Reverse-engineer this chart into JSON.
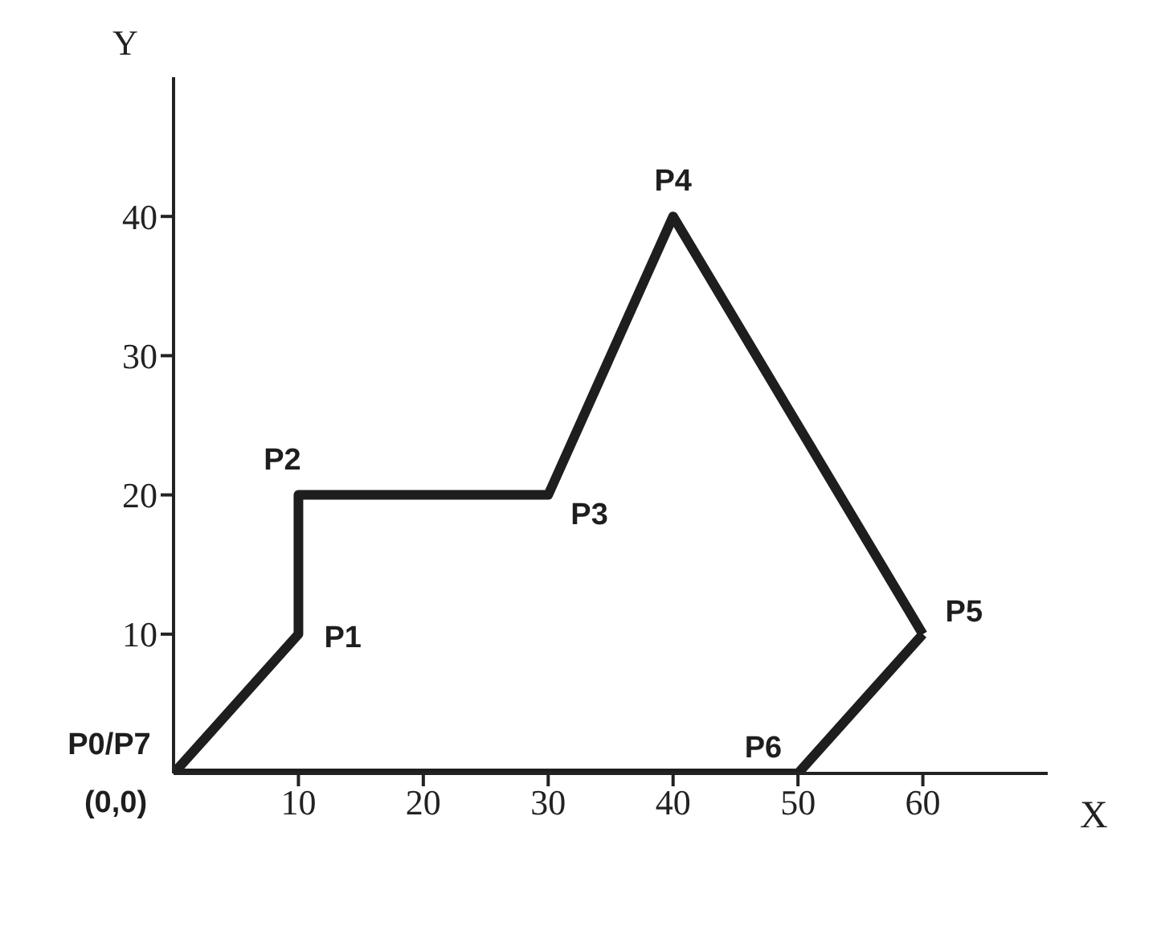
{
  "chart_data": {
    "type": "line",
    "xlabel": "X",
    "ylabel": "Y",
    "series": [
      {
        "color": "#1e1e1e",
        "x": [
          0,
          10,
          10,
          30,
          40,
          60
        ],
        "values": [
          0,
          10,
          20,
          20,
          40,
          10
        ]
      },
      {
        "color": "#1e1e1e",
        "x": [
          0,
          50,
          60
        ],
        "values": [
          0,
          0,
          10
        ]
      }
    ],
    "xlim": [
      0,
      70
    ],
    "ylim": [
      0,
      50
    ],
    "xticks": [
      10,
      20,
      30,
      40,
      50,
      60
    ],
    "yticks": [
      10,
      20,
      30,
      40
    ],
    "grid": false,
    "legend": false,
    "marker": "none",
    "line_style": "solid",
    "annotations": [
      {
        "text": "P0/P7",
        "x": 0,
        "y": 0
      },
      {
        "text": "P1",
        "x": 10,
        "y": 10
      },
      {
        "text": "P2",
        "x": 10,
        "y": 20
      },
      {
        "text": "P3",
        "x": 30,
        "y": 20
      },
      {
        "text": "P4",
        "x": 40,
        "y": 40
      },
      {
        "text": "P5",
        "x": 60,
        "y": 10
      },
      {
        "text": "P6",
        "x": 50,
        "y": 0
      },
      {
        "text": "(0,0)",
        "x": 0,
        "y": 0
      }
    ]
  }
}
